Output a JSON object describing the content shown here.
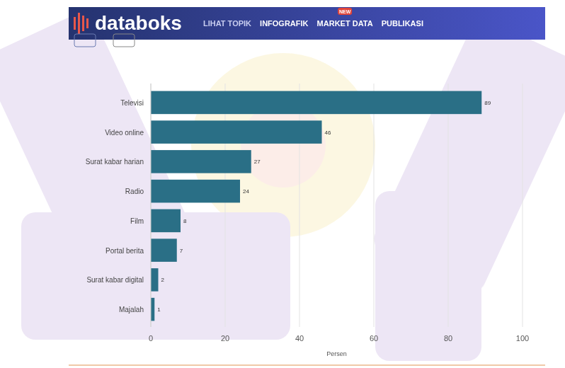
{
  "header": {
    "logo": "databoks",
    "nav": [
      "LIHAT TOPIK",
      "INFOGRAFIK",
      "MARKET DATA",
      "PUBLIKASI"
    ],
    "badge": "NEW"
  },
  "chart_data": {
    "type": "bar",
    "orientation": "horizontal",
    "categories": [
      "Televisi",
      "Video online",
      "Surat kabar harian",
      "Radio",
      "Film",
      "Portal berita",
      "Surat kabar digital",
      "Majalah"
    ],
    "values": [
      89,
      46,
      27,
      24,
      8,
      7,
      2,
      1
    ],
    "color": "#2a6f86",
    "xlim": [
      0,
      100
    ],
    "xticks": [
      0,
      20,
      40,
      60,
      80,
      100
    ],
    "x_label": "Persen",
    "grid": true,
    "data_labels": true
  }
}
